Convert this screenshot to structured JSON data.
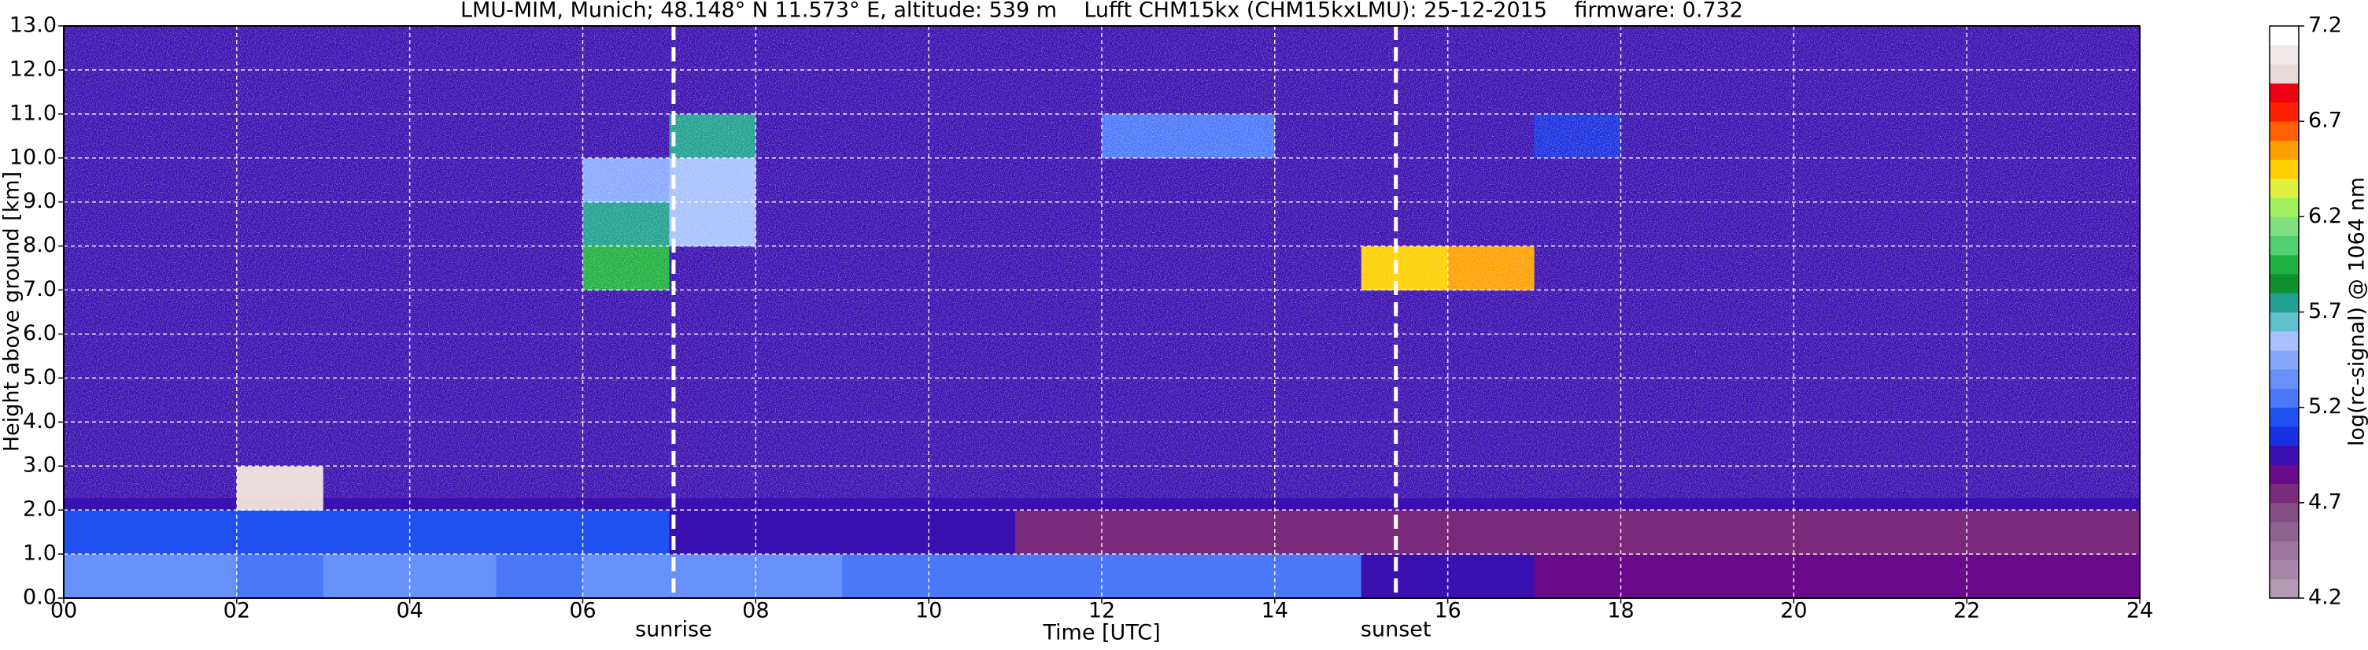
{
  "chart_data": {
    "type": "heatmap",
    "title": "LMU-MIM, Munich; 48.148° N 11.573° E, altitude: 539 m    Lufft CHM15kx (CHM15kxLMU): 25-12-2015    firmware: 0.732",
    "x_label": "Time [UTC]",
    "y_label": "Height above ground [km]",
    "colorbar_label": "log(rc-signal) @ 1064 nm",
    "xbins": [
      0,
      1,
      2,
      3,
      4,
      5,
      6,
      7,
      8,
      9,
      10,
      11,
      12,
      13,
      14,
      15,
      16,
      17,
      18,
      19,
      20,
      21,
      22,
      23,
      24
    ],
    "ybins": [
      0,
      1,
      2,
      3,
      4,
      5,
      6,
      7,
      8,
      9,
      10,
      11,
      12,
      13
    ],
    "z": [
      [
        5.35,
        5.35,
        5.3,
        5.35,
        5.35,
        5.3,
        5.35,
        5.35,
        5.35,
        5.3,
        5.3,
        5.3,
        5.25,
        5.25,
        5.25,
        5.0,
        5.0,
        4.85,
        4.85,
        4.85,
        4.85,
        4.85,
        4.85,
        4.85
      ],
      [
        5.15,
        5.15,
        5.15,
        5.15,
        5.15,
        5.15,
        5.15,
        4.95,
        4.95,
        4.95,
        4.95,
        4.75,
        4.75,
        4.75,
        4.75,
        4.75,
        4.75,
        4.75,
        4.75,
        4.75,
        4.75,
        4.75,
        4.75,
        4.75
      ],
      [
        4.9,
        4.9,
        7.0,
        4.9,
        4.9,
        4.9,
        4.9,
        4.9,
        4.9,
        4.9,
        4.9,
        4.9,
        4.9,
        4.9,
        4.9,
        4.9,
        4.9,
        4.9,
        4.9,
        4.9,
        4.9,
        4.9,
        4.9,
        4.9
      ],
      [
        4.9,
        4.9,
        4.9,
        4.9,
        4.9,
        4.9,
        4.9,
        4.9,
        4.9,
        4.9,
        4.9,
        4.9,
        4.9,
        4.9,
        4.9,
        4.9,
        4.9,
        4.9,
        4.9,
        4.9,
        4.9,
        4.9,
        4.9,
        4.9
      ],
      [
        4.9,
        4.9,
        4.9,
        4.9,
        4.9,
        4.9,
        4.9,
        4.9,
        4.9,
        4.9,
        4.9,
        4.9,
        4.9,
        4.9,
        4.9,
        4.9,
        4.9,
        4.9,
        4.9,
        4.9,
        4.9,
        4.9,
        4.9,
        4.9
      ],
      [
        4.9,
        4.9,
        4.9,
        4.9,
        4.9,
        4.9,
        4.9,
        4.9,
        4.9,
        4.9,
        4.9,
        4.9,
        4.9,
        4.9,
        4.9,
        4.9,
        4.9,
        4.9,
        4.9,
        4.9,
        4.9,
        4.9,
        4.9,
        4.9
      ],
      [
        4.9,
        4.9,
        4.9,
        4.9,
        4.9,
        4.9,
        4.9,
        4.9,
        4.9,
        4.9,
        4.9,
        4.9,
        4.9,
        4.9,
        4.9,
        4.9,
        4.9,
        4.9,
        4.9,
        4.9,
        4.9,
        4.9,
        4.9,
        4.9
      ],
      [
        4.9,
        4.9,
        4.9,
        4.9,
        4.9,
        4.9,
        5.9,
        4.9,
        4.9,
        4.9,
        4.9,
        4.9,
        4.9,
        4.9,
        4.9,
        6.4,
        6.6,
        4.9,
        4.9,
        4.9,
        4.9,
        4.9,
        4.9,
        4.9
      ],
      [
        4.9,
        4.9,
        4.9,
        4.9,
        4.9,
        4.9,
        5.8,
        5.6,
        4.9,
        4.9,
        4.9,
        4.9,
        4.9,
        4.9,
        4.9,
        4.9,
        4.9,
        4.9,
        4.9,
        4.9,
        4.9,
        4.9,
        4.9,
        4.9
      ],
      [
        4.9,
        4.9,
        4.9,
        4.9,
        4.9,
        4.9,
        5.5,
        5.6,
        4.9,
        4.9,
        4.9,
        4.9,
        4.9,
        4.9,
        4.9,
        4.9,
        4.9,
        4.9,
        4.9,
        4.9,
        4.9,
        4.9,
        4.9,
        4.9
      ],
      [
        4.9,
        4.9,
        4.9,
        4.9,
        4.9,
        4.9,
        4.9,
        5.7,
        4.9,
        4.9,
        4.9,
        4.9,
        5.2,
        5.3,
        4.9,
        4.9,
        4.9,
        5.1,
        4.9,
        4.9,
        4.9,
        4.9,
        4.9,
        4.9
      ],
      [
        4.9,
        4.9,
        4.9,
        4.9,
        4.9,
        4.9,
        4.9,
        4.9,
        4.9,
        4.9,
        4.9,
        4.9,
        4.9,
        4.9,
        4.9,
        4.9,
        4.9,
        4.9,
        4.9,
        4.9,
        4.9,
        4.9,
        4.9,
        4.9
      ],
      [
        4.9,
        4.9,
        4.9,
        4.9,
        4.9,
        4.9,
        4.9,
        4.9,
        4.9,
        4.9,
        4.9,
        4.9,
        4.9,
        4.9,
        4.9,
        4.9,
        4.9,
        4.9,
        4.9,
        4.9,
        4.9,
        4.9,
        4.9,
        4.9
      ]
    ],
    "colors": [
      "#b49bb4",
      "#a888a8",
      "#9c769c",
      "#8f628f",
      "#834e83",
      "#7a2a7a",
      "#6a0a8a",
      "#3a10b0",
      "#1a30e0",
      "#2050f0",
      "#4a78f8",
      "#6890fa",
      "#88a8fc",
      "#a8c0fe",
      "#60c0d0",
      "#20a090",
      "#109030",
      "#20b040",
      "#50d070",
      "#80e080",
      "#a0f060",
      "#e0f040",
      "#ffd000",
      "#ffa000",
      "#ff6000",
      "#ff2000",
      "#ee0010",
      "#e8d8d8",
      "#f0e8e8",
      "#ffffff"
    ],
    "xlim": [
      0,
      24
    ],
    "ylim": [
      0,
      13
    ],
    "zlim": [
      4.2,
      7.2
    ],
    "xticks": [
      {
        "value": 0,
        "label": "00"
      },
      {
        "value": 2,
        "label": "02"
      },
      {
        "value": 4,
        "label": "04"
      },
      {
        "value": 6,
        "label": "06"
      },
      {
        "value": 8,
        "label": "08"
      },
      {
        "value": 10,
        "label": "10"
      },
      {
        "value": 12,
        "label": "12"
      },
      {
        "value": 14,
        "label": "14"
      },
      {
        "value": 16,
        "label": "16"
      },
      {
        "value": 18,
        "label": "18"
      },
      {
        "value": 20,
        "label": "20"
      },
      {
        "value": 22,
        "label": "22"
      },
      {
        "value": 24,
        "label": "24"
      }
    ],
    "yticks": [
      {
        "value": 0,
        "label": "0.0"
      },
      {
        "value": 1,
        "label": "1.0"
      },
      {
        "value": 2,
        "label": "2.0"
      },
      {
        "value": 3,
        "label": "3.0"
      },
      {
        "value": 4,
        "label": "4.0"
      },
      {
        "value": 5,
        "label": "5.0"
      },
      {
        "value": 6,
        "label": "6.0"
      },
      {
        "value": 7,
        "label": "7.0"
      },
      {
        "value": 8,
        "label": "8.0"
      },
      {
        "value": 9,
        "label": "9.0"
      },
      {
        "value": 10,
        "label": "10.0"
      },
      {
        "value": 11,
        "label": "11.0"
      },
      {
        "value": 12,
        "label": "12.0"
      },
      {
        "value": 13,
        "label": "13.0"
      }
    ],
    "zticks": [
      4.2,
      4.7,
      5.2,
      5.7,
      6.2,
      6.7,
      7.2
    ],
    "grid": true,
    "annotations": [
      {
        "label": "sunrise",
        "x": 7.05
      },
      {
        "label": "sunset",
        "x": 15.4
      }
    ]
  }
}
